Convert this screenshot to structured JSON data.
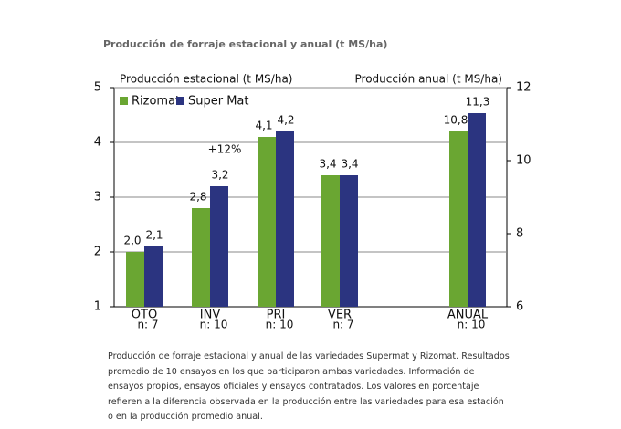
{
  "chart_data": {
    "type": "bar",
    "title": "Producción de forraje estacional y anual (t MS/ha)",
    "ylabel": "Producción estacional (t MS/ha)",
    "y2label": "Producción anual (t MS/ha)",
    "categories": [
      "OTO",
      "INV",
      "PRI",
      "VER",
      "ANUAL"
    ],
    "category_notes": [
      "n: 7",
      "n: 10",
      "n: 10",
      "n: 7",
      "n: 10"
    ],
    "series": [
      {
        "name": "Rizomat",
        "color": "#6aa632",
        "values": [
          2.0,
          2.8,
          4.1,
          3.4,
          null
        ],
        "value_labels": [
          "2,0",
          "2,8",
          "4,1",
          "3,4",
          null
        ],
        "y2_values": [
          null,
          null,
          null,
          null,
          10.8
        ],
        "y2_value_labels": [
          null,
          null,
          null,
          null,
          "10,8"
        ]
      },
      {
        "name": "Super Mat",
        "color": "#2b3480",
        "values": [
          2.1,
          3.2,
          4.2,
          3.4,
          null
        ],
        "value_labels": [
          "2,1",
          "3,2",
          "4,2",
          "3,4",
          null
        ],
        "y2_values": [
          null,
          null,
          null,
          null,
          11.3
        ],
        "y2_value_labels": [
          null,
          null,
          null,
          null,
          "11,3"
        ]
      }
    ],
    "ylim": [
      1,
      5
    ],
    "yticks": [
      1,
      2,
      3,
      4,
      5
    ],
    "y2lim": [
      6,
      12
    ],
    "y2ticks": [
      6,
      8,
      10,
      12
    ],
    "grid": true,
    "legend": "top-left",
    "annotations": [
      "+12%"
    ],
    "caption": "Producción de forraje estacional y anual de las variedades Supermat y Rizomat. Resultados promedio de 10 ensayos en los que participaron ambas variedades. Información de ensayos propios, ensayos oficiales y ensayos contratados. Los valores en porcentaje refieren a la diferencia observada en la producción entre las variedades para esa estación o en la producción promedio anual."
  }
}
